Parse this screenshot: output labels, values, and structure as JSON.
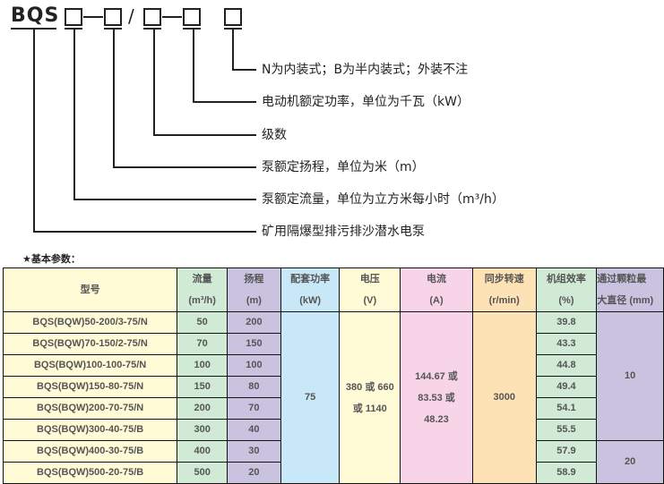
{
  "code": {
    "prefix": "BQS",
    "slash": "/"
  },
  "legend": [
    "N为内装式；B为半内装式；外装不注",
    "电动机额定功率，单位为千瓦（kW）",
    "级数",
    "泵额定扬程，单位为米（m）",
    "泵额定流量，单位为立方米每小时（m³/h）",
    "矿用隔爆型排污排沙潜水电泵"
  ],
  "section_title": "★基本参数：",
  "table": {
    "headers": {
      "model": "型号",
      "flow": "流量",
      "flow_unit": "(m³/h)",
      "head": "扬程",
      "head_unit": "(m)",
      "power": "配套功率",
      "power_unit": "(kW)",
      "voltage": "电压",
      "voltage_unit": "(V)",
      "current": "电流",
      "current_unit": "(A)",
      "speed": "同步转速",
      "speed_unit": "(r/min)",
      "eff": "机组效率",
      "eff_unit": "(%)",
      "particle": "通过颗粒最",
      "particle_unit": "大直径 (mm)"
    },
    "rows": [
      {
        "model": "BQS(BQW)50-200/3-75/N",
        "flow": "50",
        "head": "200",
        "eff": "39.8"
      },
      {
        "model": "BQS(BQW)70-150/2-75/N",
        "flow": "70",
        "head": "150",
        "eff": "43.3"
      },
      {
        "model": "BQS(BQW)100-100-75/N",
        "flow": "100",
        "head": "100",
        "eff": "44.8"
      },
      {
        "model": "BQS(BQW)150-80-75/N",
        "flow": "150",
        "head": "80",
        "eff": "49.4"
      },
      {
        "model": "BQS(BQW)200-70-75/N",
        "flow": "200",
        "head": "70",
        "eff": "54.1"
      },
      {
        "model": "BQS(BQW)300-40-75/B",
        "flow": "300",
        "head": "40",
        "eff": "55.5"
      },
      {
        "model": "BQS(BQW)400-30-75/B",
        "flow": "400",
        "head": "30",
        "eff": "57.9"
      },
      {
        "model": "BQS(BQW)500-20-75/B",
        "flow": "500",
        "head": "20",
        "eff": "58.9"
      }
    ],
    "shared": {
      "power": "75",
      "voltage_1": "380 或 660",
      "voltage_2": "或 1140",
      "current_1": "144.67 或",
      "current_2": "83.53 或",
      "current_3": "48.23",
      "speed": "3000",
      "particle_a": "10",
      "particle_b": "20"
    }
  }
}
